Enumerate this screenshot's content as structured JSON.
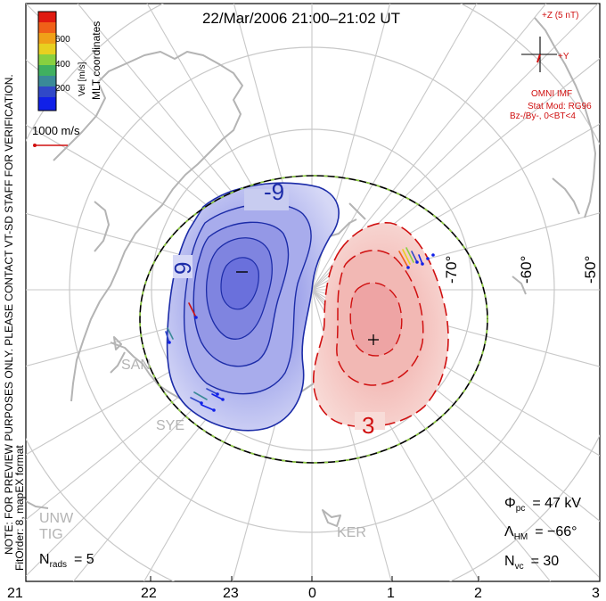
{
  "title": "22/Mar/2006 21:00–21:02 UT",
  "colorbar": {
    "label": "Vel [m/s]",
    "ticks": [
      "600",
      "400",
      "200"
    ],
    "colors": [
      "#e01a10",
      "#f06018",
      "#f0a018",
      "#e8d020",
      "#88d040",
      "#40b060",
      "#3a8a98",
      "#3048c8",
      "#1020e8"
    ]
  },
  "coordinate_label": "MLT coordinates",
  "vector_scale": "1000 m/s",
  "imf": {
    "z_label": "+Z (5 nT)",
    "y_label": "+Y",
    "source": "OMNI IMF",
    "stat_mod": "Stat Mod: RG96",
    "condition": "Bz-/By-, 0<BT<4"
  },
  "contours": {
    "negative_label": "-9",
    "negative_label_2": "9",
    "positive_label": "3"
  },
  "latitude_labels": [
    "-70°",
    "-60°",
    "-50°"
  ],
  "radar_sites": [
    "SAN",
    "SYE",
    "UNW",
    "TIG",
    "KER"
  ],
  "mlt_labels": [
    "21",
    "22",
    "23",
    "0",
    "1",
    "2",
    "3"
  ],
  "stats": {
    "phi_symbol": "Φ",
    "phi_sub": "pc",
    "phi_value": "= 47 kV",
    "lambda_symbol": "Λ",
    "lambda_sub": "HM",
    "lambda_value": "= −66°",
    "nvc_symbol": "N",
    "nvc_sub": "vc",
    "nvc_value": "= 30",
    "nrads_symbol": "N",
    "nrads_sub": "rads",
    "nrads_value": "= 5"
  },
  "notes": {
    "preview": "NOTE: FOR PREVIEW PURPOSES ONLY. PLEASE CONTACT VT-SD STAFF FOR VERIFICATION.",
    "fit": "FitOrder: 8, mapEX format"
  },
  "colors": {
    "negative_fill": "#c8ccf0",
    "negative_line": "#1c2ca8",
    "positive_fill": "#f4ccc8",
    "positive_line": "#d01010",
    "boundary": "#000000",
    "boundary_dash": "#90d040",
    "coast": "#b4b4b4",
    "grid": "#c8c8c8"
  }
}
